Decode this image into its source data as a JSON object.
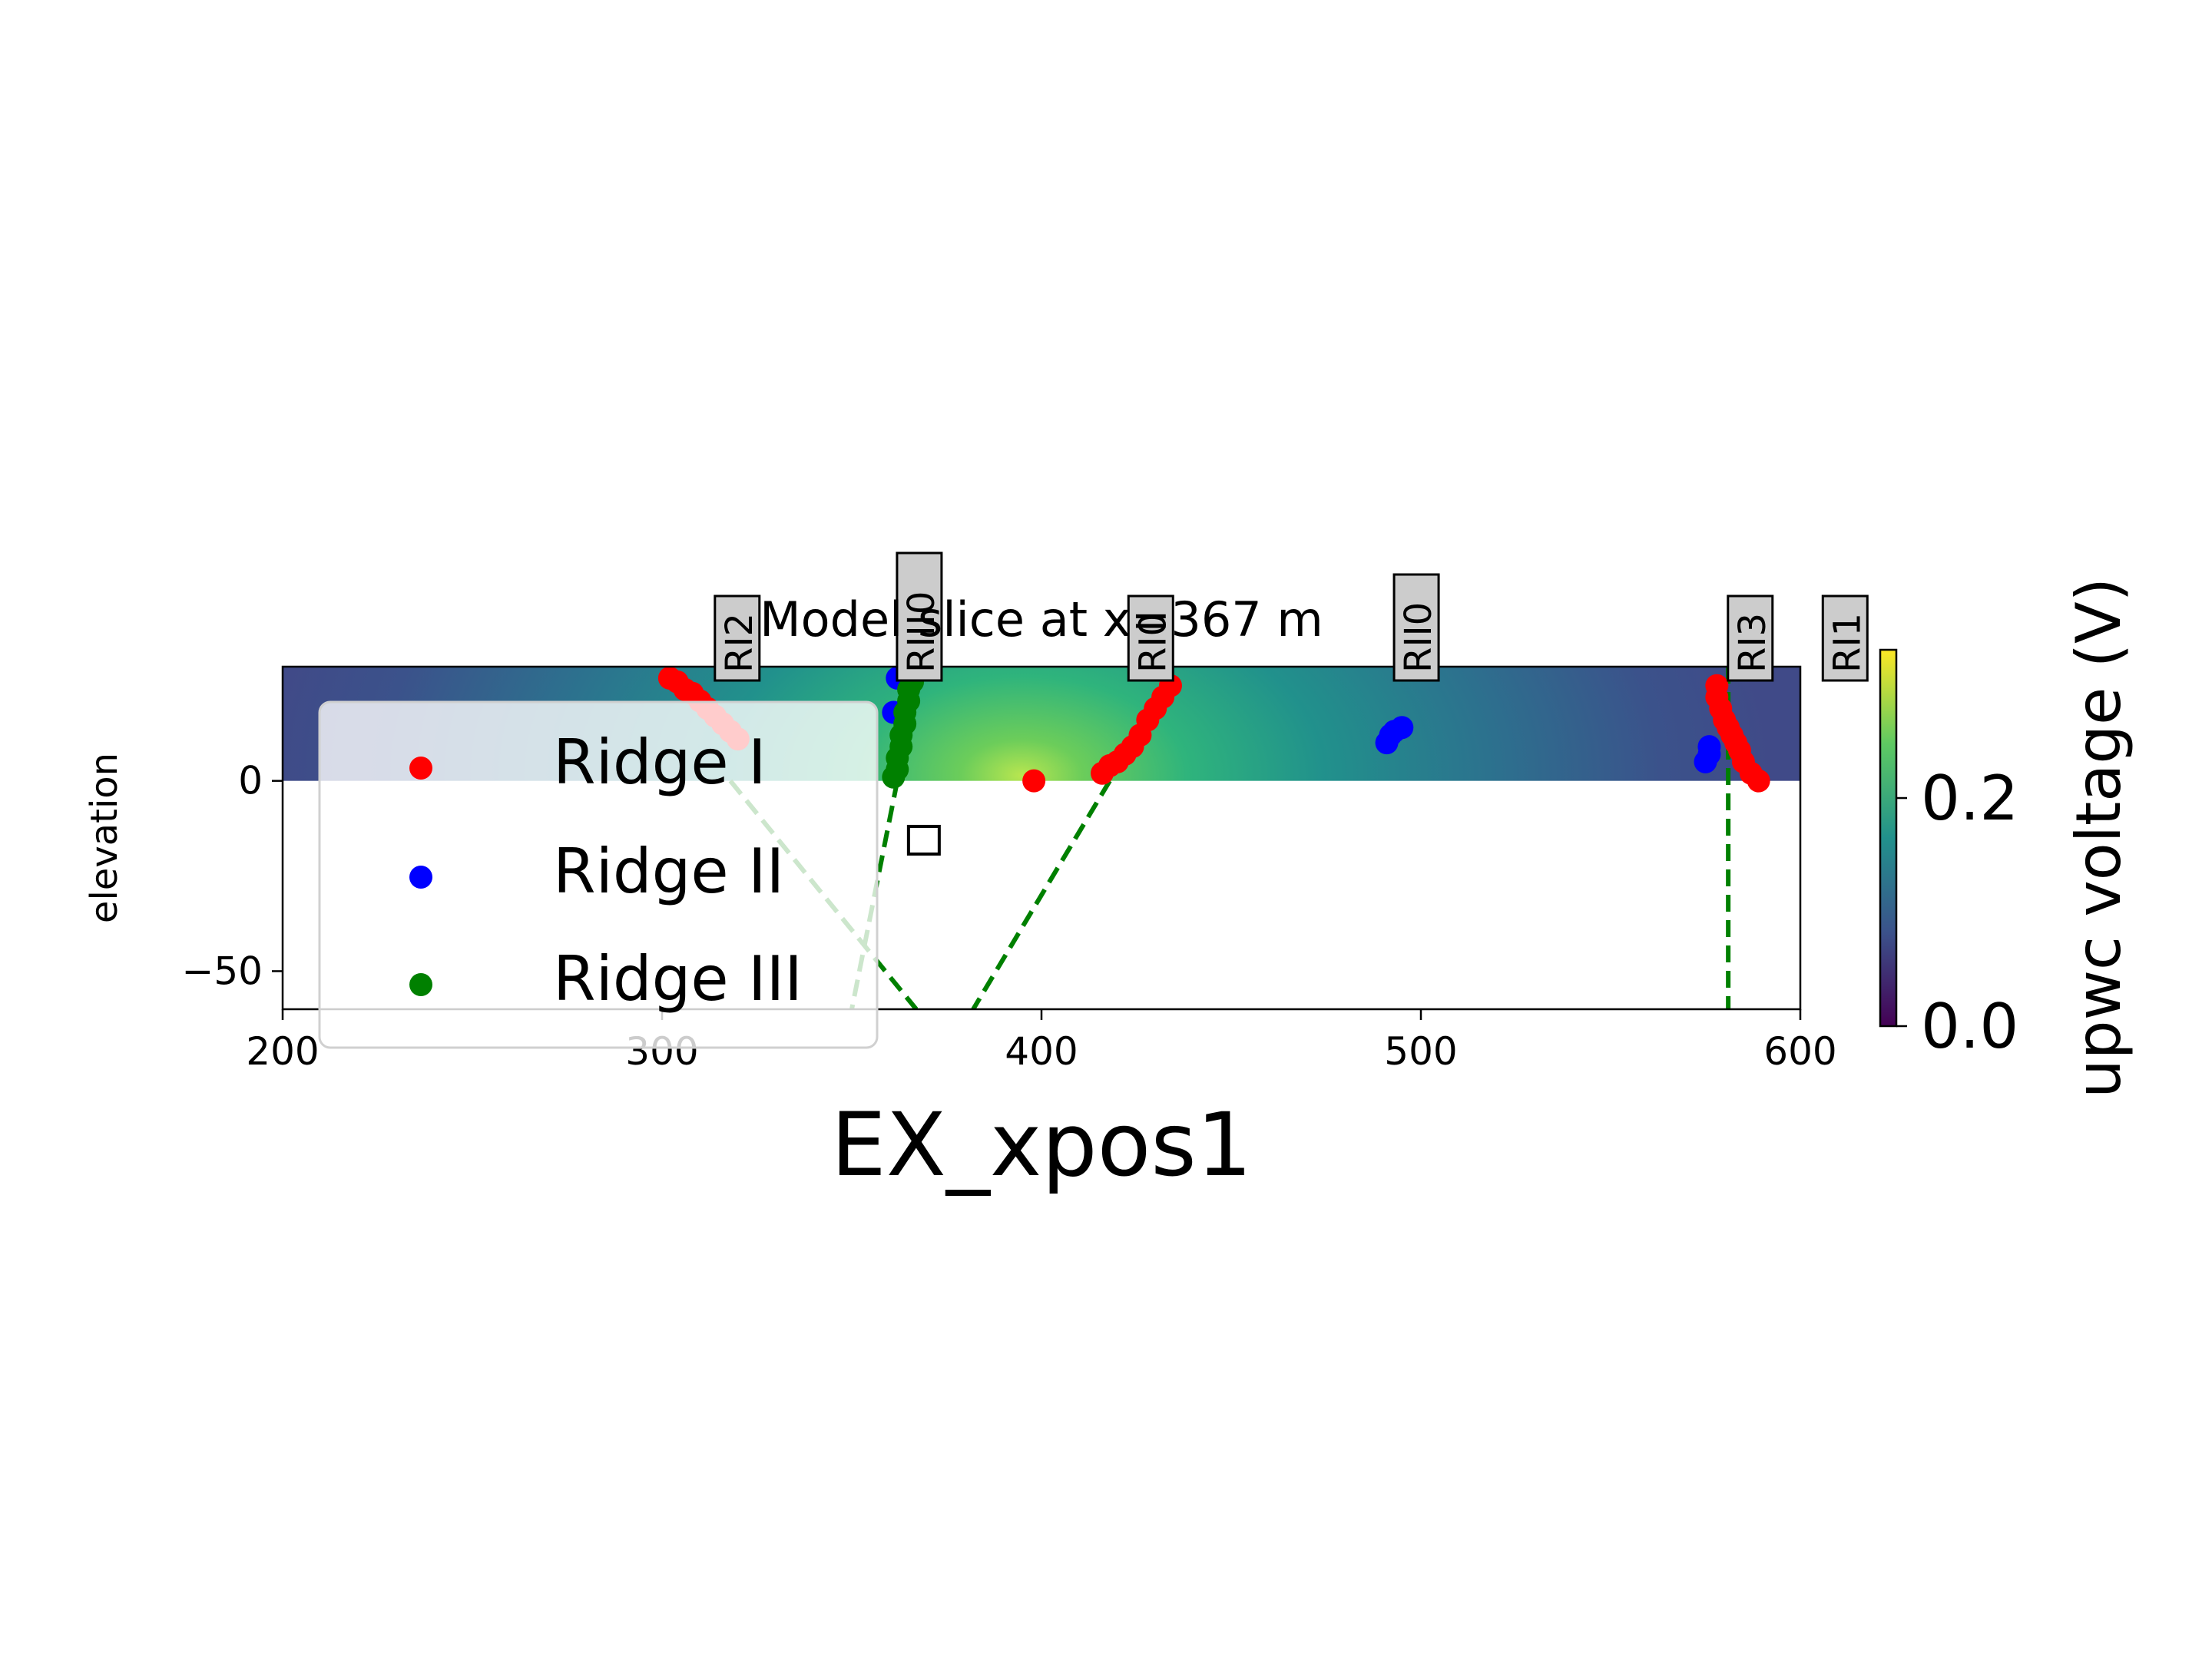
{
  "chart_data": {
    "type": "scatter",
    "title": "Model slice at x=367 m",
    "xlabel": "EX_xpos1",
    "ylabel": "elevation",
    "xlim": [
      200,
      600
    ],
    "ylim": [
      -60,
      30
    ],
    "xticks": [
      200,
      300,
      400,
      500,
      600
    ],
    "yticks": [
      0,
      -50
    ],
    "xtick_labels": [
      "200",
      "300",
      "400",
      "500",
      "600"
    ],
    "ytick_labels": [
      "0",
      "−50"
    ],
    "background_field": {
      "colormap": "viridis",
      "elevation_range": [
        0,
        30
      ],
      "peak_x": 380
    },
    "colorbar": {
      "label": "upwc voltage (V)",
      "range": [
        0.0,
        0.33
      ],
      "ticks": [
        0.0,
        0.2
      ],
      "tick_labels": [
        "0.0",
        "0.2"
      ]
    },
    "legend": {
      "placement": "lower-left"
    },
    "series": [
      {
        "name": "Ridge I",
        "color": "#ff0000",
        "x": [
          302,
          304,
          306,
          308,
          310,
          312,
          314,
          316,
          318,
          320,
          398,
          416,
          418,
          420,
          422,
          424,
          426,
          428,
          430,
          432,
          434,
          578,
          578,
          579,
          580,
          581,
          582,
          583,
          584,
          585,
          587,
          589
        ],
        "y": [
          27,
          26,
          24,
          23,
          21,
          19,
          17,
          15,
          13,
          11,
          0,
          2,
          4,
          5,
          7,
          9,
          12,
          16,
          19,
          22,
          25,
          25,
          22,
          19,
          16,
          14,
          12,
          10,
          8,
          5,
          2,
          0
        ]
      },
      {
        "name": "Ridge II",
        "color": "#0000ff",
        "x": [
          361,
          362,
          491,
          492,
          493,
          495,
          575,
          576,
          576
        ],
        "y": [
          18,
          27,
          10,
          12,
          13,
          14,
          5,
          7,
          9
        ]
      },
      {
        "name": "Ridge III",
        "color": "#008000",
        "x": [
          361,
          362,
          362,
          363,
          363,
          364,
          364,
          365,
          365,
          366
        ],
        "y": [
          1,
          3,
          6,
          9,
          12,
          15,
          18,
          21,
          24,
          26
        ]
      }
    ],
    "lines": [
      {
        "color": "#008000",
        "style": "dashed",
        "x": [
          362,
          350
        ],
        "y": [
          0,
          -60
        ]
      },
      {
        "color": "#008000",
        "style": "dashed",
        "x": [
          318,
          367
        ],
        "y": [
          0,
          -60
        ]
      },
      {
        "color": "#008000",
        "style": "dashed",
        "x": [
          418,
          382
        ],
        "y": [
          0,
          -60
        ]
      },
      {
        "color": "#008000",
        "style": "dashed",
        "x": [
          581,
          581
        ],
        "y": [
          30,
          -60
        ]
      }
    ],
    "square_marker": {
      "x": 369,
      "y": -16
    },
    "annotations": [
      {
        "text": "RI2",
        "x": 320
      },
      {
        "text": "RIII0",
        "x": 368
      },
      {
        "text": "RI0",
        "x": 429
      },
      {
        "text": "RII0",
        "x": 499
      },
      {
        "text": "RI3",
        "x": 587
      },
      {
        "text": "RI1",
        "x": 612
      }
    ]
  }
}
